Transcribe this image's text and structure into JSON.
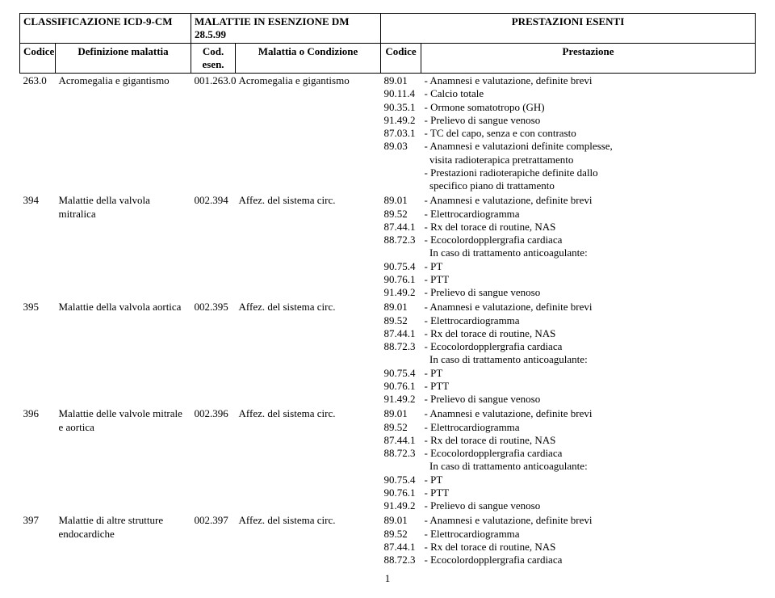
{
  "header": {
    "group1": "CLASSIFICAZIONE ICD-9-CM",
    "group2": "MALATTIE IN ESENZIONE DM 28.5.99",
    "group3": "PRESTAZIONI ESENTI",
    "col1": "Codice",
    "col2": "Definizione malattia",
    "col3": "Cod. esen.",
    "col4": "Malattia o Condizione",
    "col5": "Codice",
    "col6": "Prestazione"
  },
  "rows": [
    {
      "icd": "263.0",
      "def": "Acromegalia e gigantismo",
      "esen": "001.263.0",
      "cond": "Acromegalia e gigantismo",
      "codes": "89.01\n90.11.4\n90.35.1\n91.49.2\n87.03.1\n89.03\n \n \n ",
      "prest": "- Anamnesi e valutazione, definite brevi\n- Calcio totale\n- Ormone somatotropo (GH)\n- Prelievo di sangue venoso\n- TC del capo, senza e con contrasto\n- Anamnesi e valutazioni definite complesse,\n  visita radioterapica pretrattamento\n- Prestazioni radioterapiche definite dallo\n  specifico piano di trattamento"
    },
    {
      "icd": "394",
      "def": "Malattie della valvola mitralica",
      "esen": "002.394",
      "cond": "Affez. del sistema circ.",
      "codes": "89.01\n89.52\n87.44.1\n88.72.3\n \n90.75.4\n90.76.1\n91.49.2",
      "prest": "- Anamnesi e valutazione, definite brevi\n- Elettrocardiogramma\n- Rx del torace di routine, NAS\n- Ecocolordopplergrafia cardiaca\n  In caso di trattamento anticoagulante:\n- PT\n- PTT\n- Prelievo di sangue venoso"
    },
    {
      "icd": "395",
      "def": "Malattie della valvola aortica",
      "esen": "002.395",
      "cond": "Affez. del sistema circ.",
      "codes": "89.01\n89.52\n87.44.1\n88.72.3\n \n90.75.4\n90.76.1\n91.49.2",
      "prest": "- Anamnesi e valutazione, definite brevi\n- Elettrocardiogramma\n- Rx del torace di routine, NAS\n- Ecocolordopplergrafia cardiaca\n  In caso di trattamento anticoagulante:\n- PT\n- PTT\n- Prelievo di sangue venoso"
    },
    {
      "icd": "396",
      "def": "Malattie delle valvole mitrale e aortica",
      "esen": "002.396",
      "cond": "Affez. del sistema circ.",
      "codes": "89.01\n89.52\n87.44.1\n88.72.3\n \n90.75.4\n90.76.1\n91.49.2",
      "prest": "- Anamnesi e valutazione, definite brevi\n- Elettrocardiogramma\n- Rx del torace di routine, NAS\n- Ecocolordopplergrafia cardiaca\n  In caso di trattamento anticoagulante:\n- PT\n- PTT\n- Prelievo di sangue venoso"
    },
    {
      "icd": "397",
      "def": "Malattie di altre strutture endocardiche",
      "esen": "002.397",
      "cond": "Affez. del sistema circ.",
      "codes": "89.01\n89.52\n87.44.1\n88.72.3",
      "prest": "- Anamnesi e valutazione, definite brevi\n- Elettrocardiogramma\n- Rx del torace di routine, NAS\n- Ecocolordopplergrafia cardiaca"
    }
  ],
  "pageNumber": "1"
}
